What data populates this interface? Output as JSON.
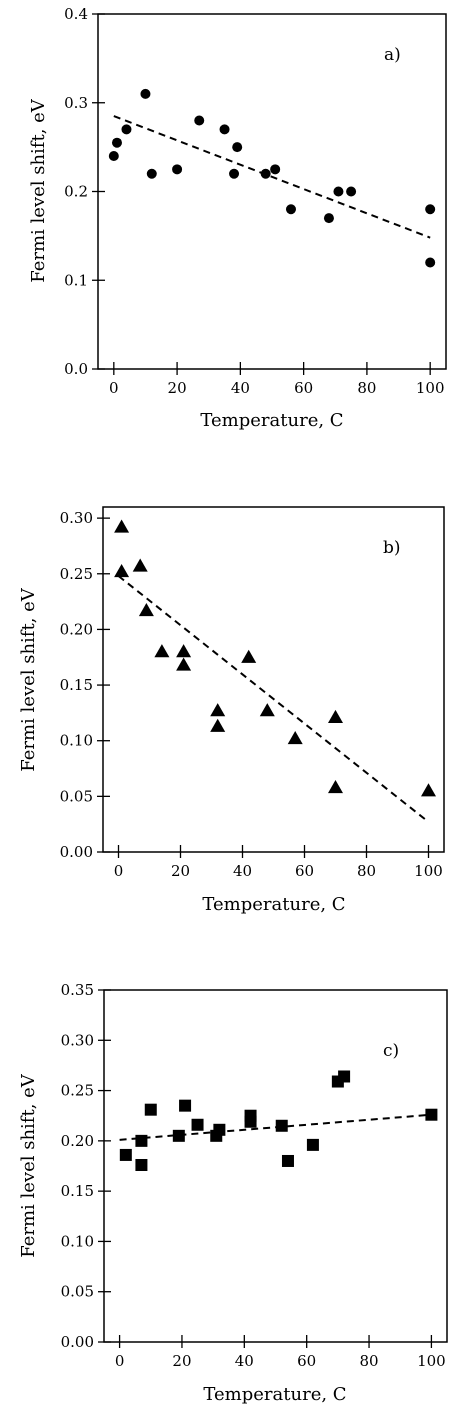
{
  "chart_data": [
    {
      "type": "scatter",
      "panel_label": "a)",
      "xlabel": "Temperature, C",
      "ylabel": "Fermi level shift, eV",
      "xlim": [
        -5,
        105
      ],
      "ylim": [
        0.0,
        0.4
      ],
      "xticks": [
        0,
        20,
        40,
        60,
        80,
        100
      ],
      "xtick_labels": [
        "0",
        "20",
        "40",
        "60",
        "80",
        "100"
      ],
      "yticks": [
        0.0,
        0.1,
        0.2,
        0.3,
        0.4
      ],
      "ytick_labels": [
        "0.0",
        "0.1",
        "0.2",
        "0.3",
        "0.4"
      ],
      "marker": "circle",
      "grid": false,
      "points": [
        {
          "x": 0,
          "y": 0.24
        },
        {
          "x": 1,
          "y": 0.255
        },
        {
          "x": 4,
          "y": 0.27
        },
        {
          "x": 10,
          "y": 0.31
        },
        {
          "x": 12,
          "y": 0.22
        },
        {
          "x": 20,
          "y": 0.225
        },
        {
          "x": 27,
          "y": 0.28
        },
        {
          "x": 35,
          "y": 0.27
        },
        {
          "x": 38,
          "y": 0.22
        },
        {
          "x": 39,
          "y": 0.25
        },
        {
          "x": 48,
          "y": 0.22
        },
        {
          "x": 51,
          "y": 0.225
        },
        {
          "x": 56,
          "y": 0.18
        },
        {
          "x": 68,
          "y": 0.17
        },
        {
          "x": 71,
          "y": 0.2
        },
        {
          "x": 75,
          "y": 0.2
        },
        {
          "x": 100,
          "y": 0.18
        },
        {
          "x": 100,
          "y": 0.12
        }
      ],
      "fit_line": {
        "x": [
          0,
          100
        ],
        "y": [
          0.285,
          0.148
        ]
      }
    },
    {
      "type": "scatter",
      "panel_label": "b)",
      "xlabel": "Temperature, C",
      "ylabel": "Fermi level shift, eV",
      "xlim": [
        -5,
        105
      ],
      "ylim": [
        0.0,
        0.31
      ],
      "xticks": [
        0,
        20,
        40,
        60,
        80,
        100
      ],
      "xtick_labels": [
        "0",
        "20",
        "40",
        "60",
        "80",
        "100"
      ],
      "yticks": [
        0.0,
        0.05,
        0.1,
        0.15,
        0.2,
        0.25,
        0.3
      ],
      "ytick_labels": [
        "0.00",
        "0.05",
        "0.10",
        "0.15",
        "0.20",
        "0.25",
        "0.30"
      ],
      "marker": "triangle",
      "grid": false,
      "points": [
        {
          "x": 1,
          "y": 0.292
        },
        {
          "x": 1,
          "y": 0.252
        },
        {
          "x": 7,
          "y": 0.257
        },
        {
          "x": 9,
          "y": 0.217
        },
        {
          "x": 14,
          "y": 0.18
        },
        {
          "x": 21,
          "y": 0.18
        },
        {
          "x": 21,
          "y": 0.168
        },
        {
          "x": 32,
          "y": 0.127
        },
        {
          "x": 32,
          "y": 0.113
        },
        {
          "x": 42,
          "y": 0.175
        },
        {
          "x": 48,
          "y": 0.127
        },
        {
          "x": 57,
          "y": 0.102
        },
        {
          "x": 70,
          "y": 0.121
        },
        {
          "x": 70,
          "y": 0.058
        },
        {
          "x": 100,
          "y": 0.055
        }
      ],
      "fit_line": {
        "x": [
          0,
          100
        ],
        "y": [
          0.248,
          0.027
        ]
      }
    },
    {
      "type": "scatter",
      "panel_label": "c)",
      "xlabel": "Temperature, C",
      "ylabel": "Fermi level shift, eV",
      "xlim": [
        -5,
        105
      ],
      "ylim": [
        0.0,
        0.35
      ],
      "xticks": [
        0,
        20,
        40,
        60,
        80,
        100
      ],
      "xtick_labels": [
        "0",
        "20",
        "40",
        "60",
        "80",
        "100"
      ],
      "yticks": [
        0.0,
        0.05,
        0.1,
        0.15,
        0.2,
        0.25,
        0.3,
        0.35
      ],
      "ytick_labels": [
        "0.00",
        "0.05",
        "0.10",
        "0.15",
        "0.20",
        "0.25",
        "0.30",
        "0.35"
      ],
      "marker": "square",
      "grid": false,
      "points": [
        {
          "x": 2,
          "y": 0.186
        },
        {
          "x": 7,
          "y": 0.2
        },
        {
          "x": 7,
          "y": 0.176
        },
        {
          "x": 10,
          "y": 0.231
        },
        {
          "x": 19,
          "y": 0.205
        },
        {
          "x": 21,
          "y": 0.235
        },
        {
          "x": 25,
          "y": 0.216
        },
        {
          "x": 31,
          "y": 0.205
        },
        {
          "x": 32,
          "y": 0.211
        },
        {
          "x": 42,
          "y": 0.225
        },
        {
          "x": 42,
          "y": 0.219
        },
        {
          "x": 52,
          "y": 0.215
        },
        {
          "x": 54,
          "y": 0.18
        },
        {
          "x": 62,
          "y": 0.196
        },
        {
          "x": 70,
          "y": 0.259
        },
        {
          "x": 72,
          "y": 0.264
        },
        {
          "x": 100,
          "y": 0.226
        }
      ],
      "fit_line": {
        "x": [
          0,
          100
        ],
        "y": [
          0.201,
          0.226
        ]
      }
    }
  ]
}
